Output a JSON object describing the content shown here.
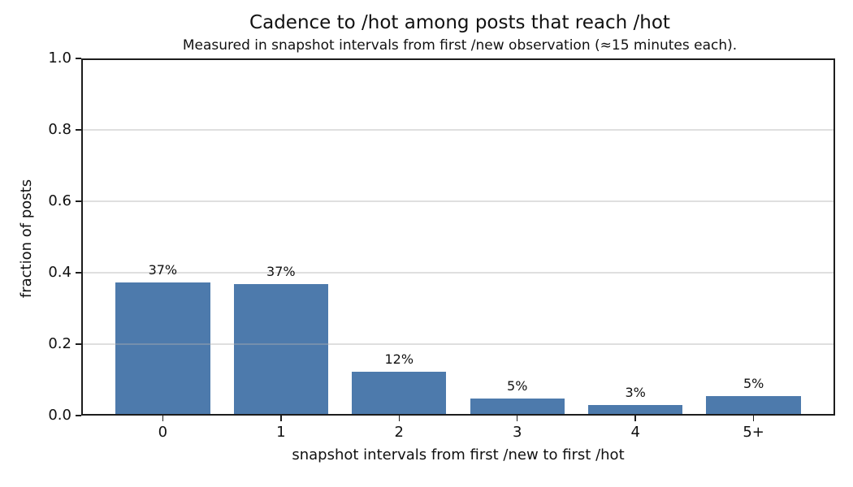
{
  "chart_data": {
    "type": "bar",
    "title": "Cadence to /hot among posts that reach /hot",
    "subtitle": "Measured in snapshot intervals from first /new observation (≈15 minutes each).",
    "xlabel": "snapshot intervals from first /new to first /hot",
    "ylabel": "fraction of posts",
    "categories": [
      "0",
      "1",
      "2",
      "3",
      "4",
      "5+"
    ],
    "values": [
      0.373,
      0.368,
      0.122,
      0.048,
      0.03,
      0.054
    ],
    "bar_labels": [
      "37%",
      "37%",
      "12%",
      "5%",
      "3%",
      "5%"
    ],
    "ylim": [
      0.0,
      1.0
    ],
    "yticks": [
      0.0,
      0.2,
      0.4,
      0.6,
      0.8,
      1.0
    ],
    "ytick_labels": [
      "0.0",
      "0.2",
      "0.4",
      "0.6",
      "0.8",
      "1.0"
    ],
    "grid": "horizontal, drawn above bars",
    "legend_position": "none",
    "colors": {
      "bar": "#4d7aac",
      "grid": "#b0b0b0",
      "axis": "#1d1d1d",
      "text": "#111111",
      "background": "#ffffff"
    }
  }
}
